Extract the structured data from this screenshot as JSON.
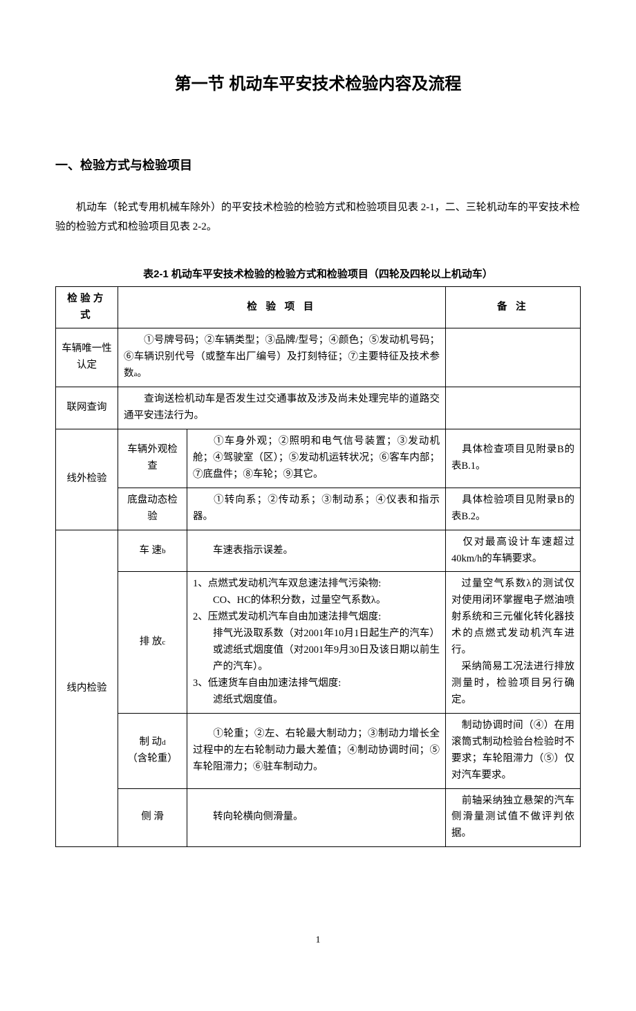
{
  "title": "第一节  机动车平安技术检验内容及流程",
  "section1_heading": "一、检验方式与检验项目",
  "intro_para": "机动车（轮式专用机械车除外）的平安技术检验的检验方式和检验项目见表 2-1，二、三轮机动车的平安技术检验的检验方式和检验项目见表 2-2。",
  "table_caption": "表2-1   机动车平安技术检验的检验方式和检验项目（四轮及四轮以上机动车）",
  "headers": {
    "method": "检验方式",
    "item": "检 验 项 目",
    "note": "备  注"
  },
  "rows": {
    "r1": {
      "method": "车辆唯一性认定",
      "content_pre": "①号牌号码；②车辆类型；③品牌/型号；④颜色；⑤发动机号码；⑥车辆识别代号（或整车出厂编号）及打刻特征；⑦主要特征及技术参数",
      "sup": "a",
      "content_post": "。",
      "note": ""
    },
    "r2": {
      "method": "联网查询",
      "content": "查询送检机动车是否发生过交通事故及涉及尚未处理完毕的道路交通平安违法行为。",
      "note": ""
    },
    "r3": {
      "method": "线外检验",
      "sub1": "车辆外观检查",
      "content1": "①车身外观；②照明和电气信号装置；③发动机舱；④驾驶室（区）；⑤发动机运转状况；⑥客车内部；⑦底盘件；⑧车轮；⑨其它。",
      "note1": "具体检查项目见附录B的表B.1。",
      "sub2": "底盘动态检验",
      "content2": "①转向系；②传动系；③制动系；④仪表和指示器。",
      "note2": "具体检验项目见附录B的表B.2。"
    },
    "r4": {
      "method": "线内检验",
      "sub1_pre": "车    速",
      "sub1_sup": "b",
      "content1": "车速表指示误差。",
      "note1": "仅对最高设计车速超过40km/h的车辆要求。",
      "sub2_pre": "排    放",
      "sub2_sup": "c",
      "content2_l1": "1、点燃式发动机汽车双怠速法排气污染物:",
      "content2_l2": "CO、HC的体积分数，过量空气系数λ。",
      "content2_l3": "2、压燃式发动机汽车自由加速法排气烟度:",
      "content2_l4": "排气光汲取系数（对2001年10月1日起生产的汽车）或滤纸式烟度值（对2001年9月30日及该日期以前生产的汽车）。",
      "content2_l5": "3、低速货车自由加速法排气烟度:",
      "content2_l6": "滤纸式烟度值。",
      "note2_p1": "过量空气系数λ的测试仅对使用闭环掌握电子燃油喷射系统和三元催化转化器技术的点燃式发动机汽车进行。",
      "note2_p2": "采纳简易工况法进行排放测量时，检验项目另行确定。",
      "sub3_pre": "制    动",
      "sub3_sup": "d",
      "sub3_line2": "（含轮重）",
      "content3": "①轮重；②左、右轮最大制动力；③制动力增长全过程中的左右轮制动力最大差值；④制动协调时间；⑤车轮阻滞力；⑥驻车制动力。",
      "note3": "制动协调时间（④）在用滚筒式制动检验台检验时不要求；车轮阻滞力（⑤）仅对汽车要求。",
      "sub4": "侧    滑",
      "content4": "转向轮横向侧滑量。",
      "note4": "前轴采纳独立悬架的汽车侧滑量测试值不做评判依据。"
    }
  },
  "page_number": "1",
  "colors": {
    "text": "#000000",
    "background": "#ffffff",
    "border": "#000000"
  }
}
